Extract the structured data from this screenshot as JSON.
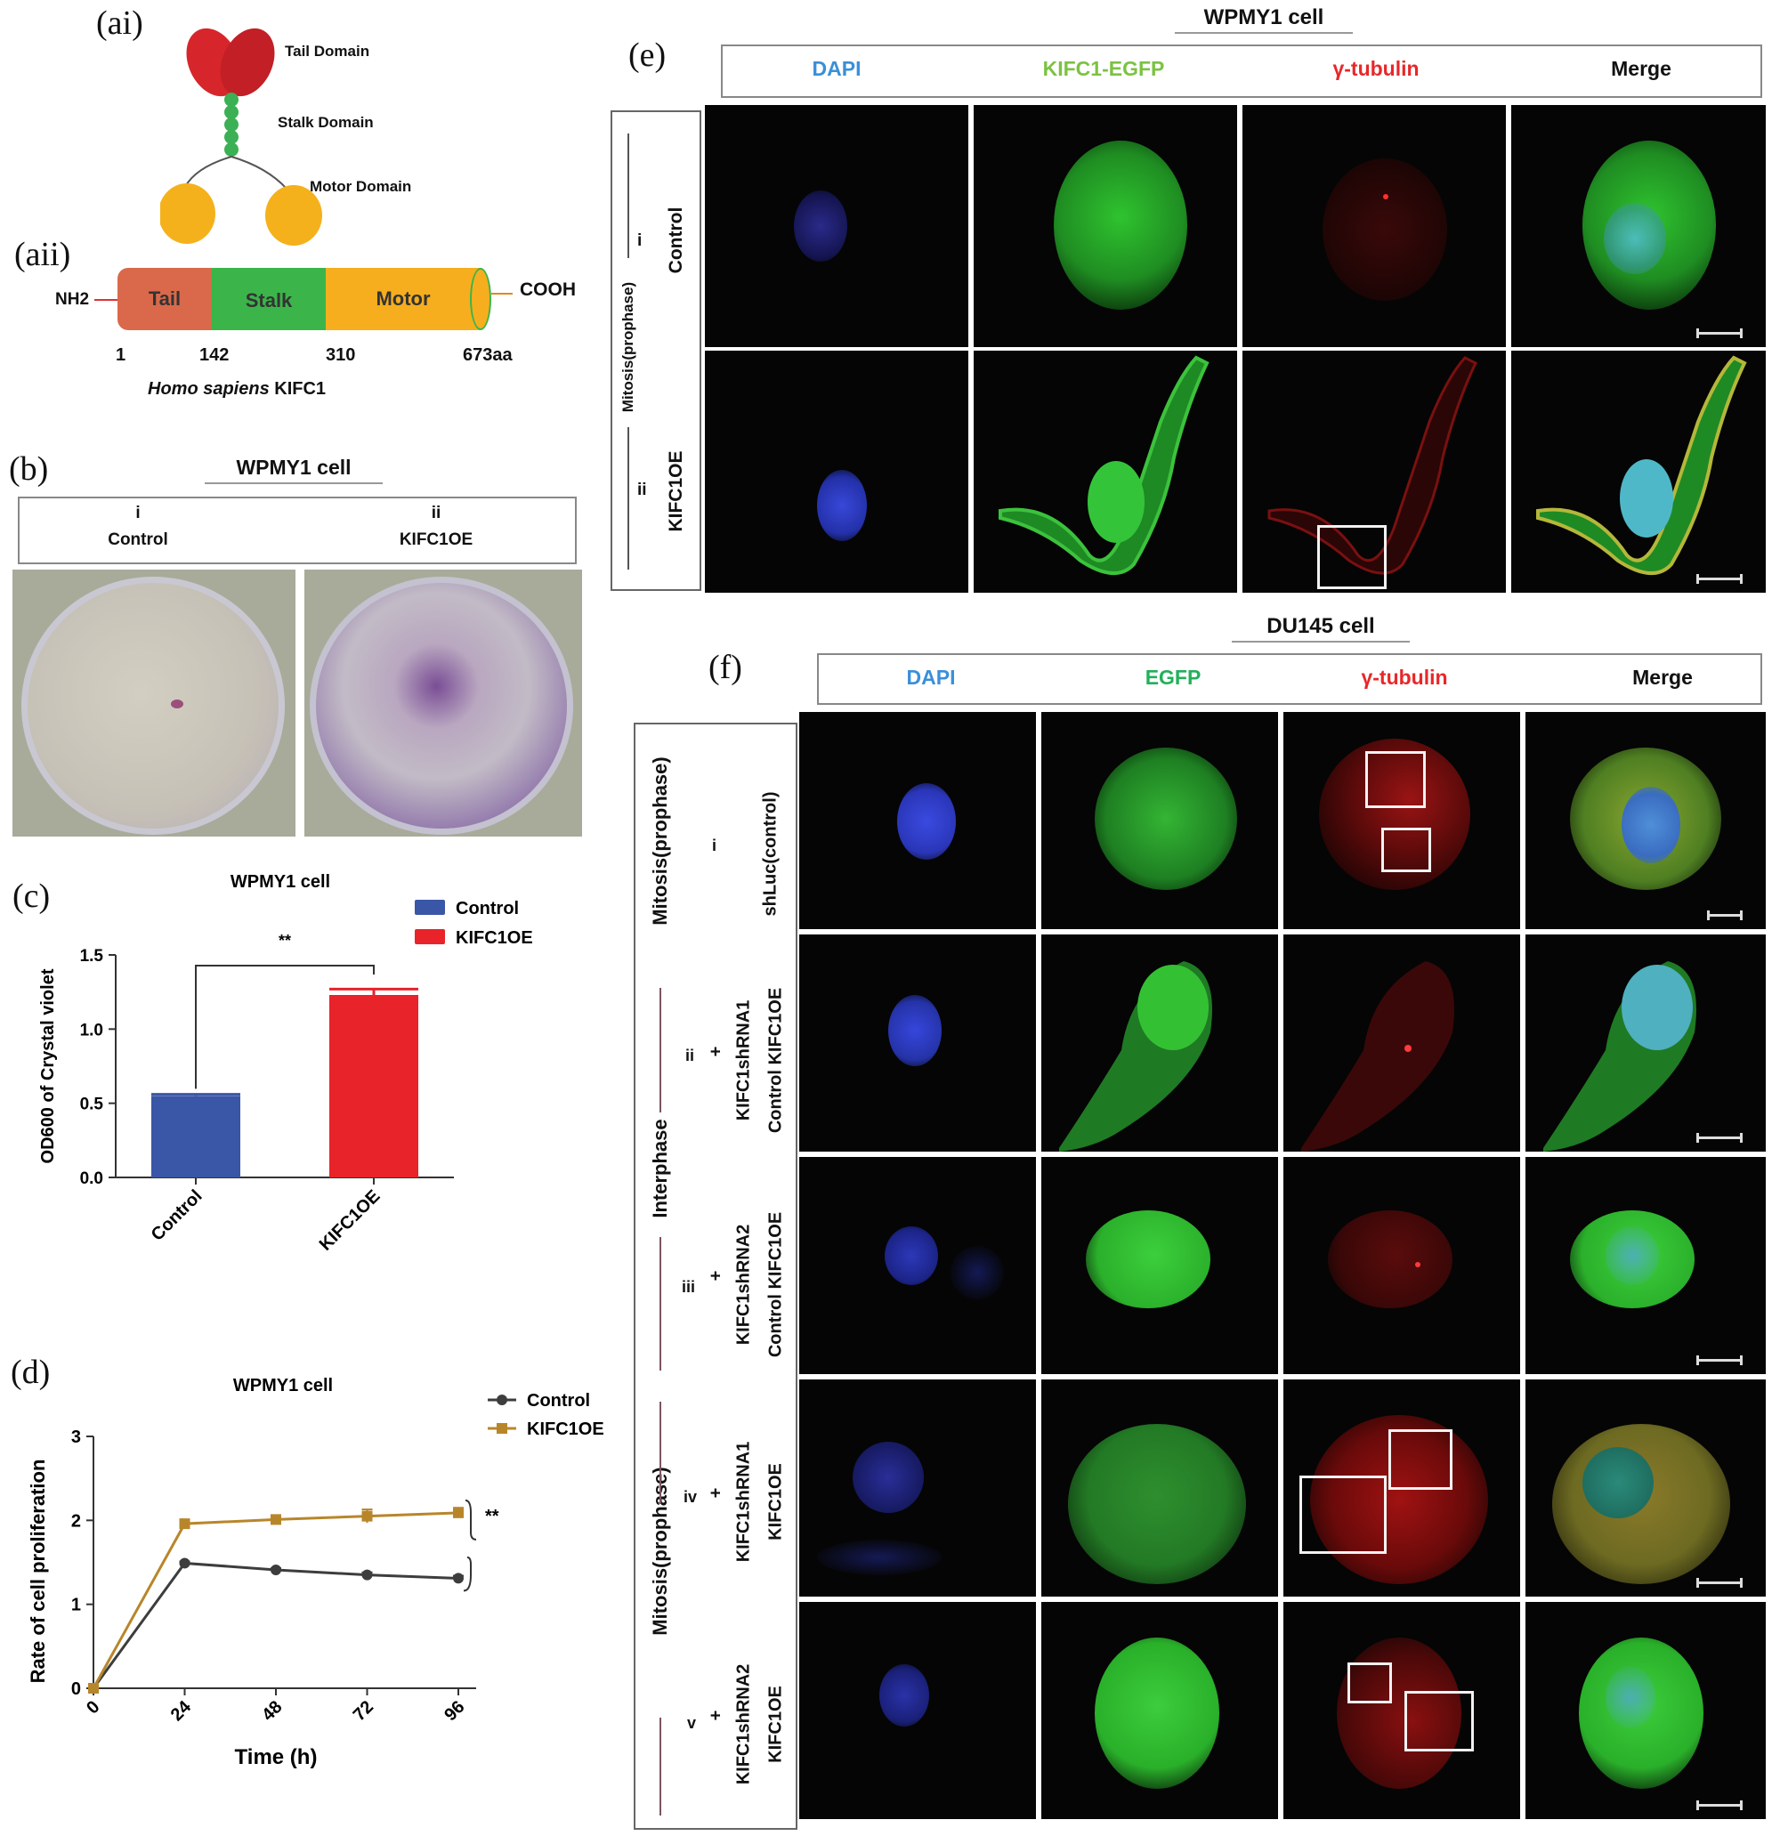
{
  "panel_labels": {
    "ai": "(ai)",
    "aii": "(aii)",
    "b": "(b)",
    "c": "(c)",
    "d": "(d)",
    "e": "(e)",
    "f": "(f)"
  },
  "domain_cartoon": {
    "tail": "Tail Domain",
    "stalk": "Stalk Domain",
    "motor": "Motor Domain"
  },
  "domain_bar": {
    "nh2": "NH2",
    "cooh": "COOH",
    "segments": [
      "Tail",
      "Stalk",
      "Motor"
    ],
    "positions": [
      "1",
      "142",
      "310",
      "673aa"
    ],
    "species_italic": "Homo sapiens",
    "gene": "KIFC1",
    "colors": {
      "tail": "#d9694a",
      "stalk": "#3bb54a",
      "motor": "#f6ae1e"
    }
  },
  "panel_b": {
    "title": "WPMY1 cell",
    "col1_num": "i",
    "col1_label": "Control",
    "col2_num": "ii",
    "col2_label": "KIFC1OE"
  },
  "panel_c": {
    "title": "WPMY1 cell",
    "significance": "**",
    "legend": [
      "Control",
      "KIFC1OE"
    ]
  },
  "panel_d": {
    "title": "WPMY1 cell",
    "significance": "**",
    "legend": [
      "Control",
      "KIFC1OE"
    ]
  },
  "panel_e": {
    "title": "WPMY1 cell",
    "columns": [
      "DAPI",
      "KIFC1-EGFP",
      "γ-tubulin",
      "Merge"
    ],
    "column_colors": [
      "#3b8fd8",
      "#7cc242",
      "#e8272a",
      "#111111"
    ],
    "group_label": "Mitosis(prophase)",
    "rows": [
      {
        "num": "i",
        "label": "Control"
      },
      {
        "num": "ii",
        "label": "KIFC1OE"
      }
    ]
  },
  "panel_f": {
    "title": "DU145 cell",
    "columns": [
      "DAPI",
      "EGFP",
      "γ-tubulin",
      "Merge"
    ],
    "column_colors": [
      "#3b8fd8",
      "#22b05a",
      "#e8272a",
      "#111111"
    ],
    "group_labels": [
      "Mitosis(prophase)",
      "Interphase",
      "Mitosis(prophase)"
    ],
    "rows": [
      {
        "num": "i",
        "line1": "shLuc(control)",
        "line2": "",
        "line3": ""
      },
      {
        "num": "ii",
        "line1": "KIFC1shRNA1",
        "line2": "+",
        "line3": "Control KIFC1OE"
      },
      {
        "num": "iii",
        "line1": "KIFC1shRNA2",
        "line2": "+",
        "line3": "Control KIFC1OE"
      },
      {
        "num": "iv",
        "line1": "KIFC1shRNA1",
        "line2": "+",
        "line3": "KIFC1OE"
      },
      {
        "num": "v",
        "line1": "KIFC1shRNA2",
        "line2": "+",
        "line3": "KIFC1OE"
      }
    ]
  },
  "chart_data": [
    {
      "type": "bar",
      "title": "WPMY1 cell",
      "categories": [
        "Control",
        "KIFC1OE"
      ],
      "values": [
        0.55,
        1.23
      ],
      "errors": [
        0.01,
        0.04
      ],
      "colors": [
        "#3a56a6",
        "#e8232a"
      ],
      "ylabel": "OD600 of Crystal violet",
      "xlabel": "",
      "ylim": [
        0,
        1.5
      ],
      "yticks": [
        "0.0",
        "0.5",
        "1.0",
        "1.5"
      ],
      "annotation": "**",
      "legend": [
        "Control",
        "KIFC1OE"
      ],
      "legend_position": "top-right"
    },
    {
      "type": "line",
      "title": "WPMY1 cell",
      "x": [
        0,
        24,
        48,
        72,
        96
      ],
      "xticks": [
        "0",
        "24",
        "48",
        "72",
        "96"
      ],
      "series": [
        {
          "name": "Control",
          "values": [
            0,
            1.49,
            1.41,
            1.35,
            1.31
          ],
          "errors": [
            0,
            0.02,
            0.02,
            0.03,
            0.03
          ],
          "color": "#3d3d3d",
          "marker": "circle"
        },
        {
          "name": "KIFC1OE",
          "values": [
            0,
            1.96,
            2.01,
            2.05,
            2.09
          ],
          "errors": [
            0,
            0.03,
            0.03,
            0.08,
            0.06
          ],
          "color": "#b8862a",
          "marker": "square"
        }
      ],
      "xlabel": "Time (h)",
      "ylabel": "Rate of cell proliferation",
      "ylim": [
        0,
        3
      ],
      "yticks": [
        "0",
        "1",
        "2",
        "3"
      ],
      "annotation": "**",
      "legend_position": "top-right"
    }
  ]
}
